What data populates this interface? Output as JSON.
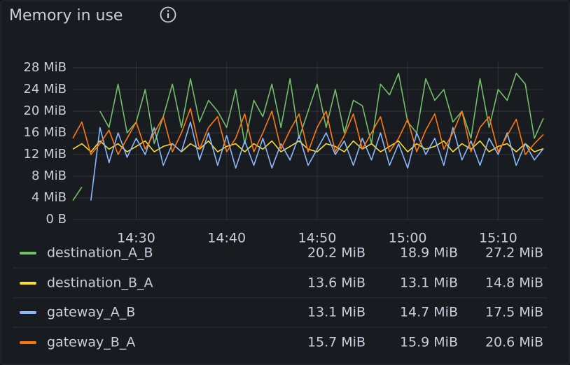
{
  "chart_data": {
    "type": "line",
    "title": "Memory in use",
    "x": [
      "14:23",
      "14:24",
      "14:25",
      "14:26",
      "14:27",
      "14:28",
      "14:29",
      "14:30",
      "14:31",
      "14:32",
      "14:33",
      "14:34",
      "14:35",
      "14:36",
      "14:37",
      "14:38",
      "14:39",
      "14:40",
      "14:41",
      "14:42",
      "14:43",
      "14:44",
      "14:45",
      "14:46",
      "14:47",
      "14:48",
      "14:49",
      "14:50",
      "14:51",
      "14:52",
      "14:53",
      "14:54",
      "14:55",
      "14:56",
      "14:57",
      "14:58",
      "14:59",
      "15:00",
      "15:01",
      "15:02",
      "15:03",
      "15:04",
      "15:05",
      "15:06",
      "15:07",
      "15:08",
      "15:09",
      "15:10",
      "15:11",
      "15:12",
      "15:13",
      "15:14",
      "15:15"
    ],
    "xlim": [
      "14:23",
      "15:15"
    ],
    "xticks": [
      "14:30",
      "14:40",
      "14:50",
      "15:00",
      "15:10"
    ],
    "ylim": [
      0,
      28
    ],
    "yticks": [
      {
        "value": 0,
        "label": "0 B"
      },
      {
        "value": 4,
        "label": "4 MiB"
      },
      {
        "value": 8,
        "label": "8 MiB"
      },
      {
        "value": 12,
        "label": "12 MiB"
      },
      {
        "value": 16,
        "label": "16 MiB"
      },
      {
        "value": 20,
        "label": "20 MiB"
      },
      {
        "value": 24,
        "label": "24 MiB"
      },
      {
        "value": 28,
        "label": "28 MiB"
      }
    ],
    "grid": true,
    "series": [
      {
        "name": "destination_A_B",
        "color": "#73bf69",
        "values": [
          3.5,
          6,
          null,
          20,
          17,
          25,
          16,
          18,
          24,
          14,
          19,
          25,
          17,
          26,
          18,
          22,
          20,
          17,
          24,
          14,
          22,
          19,
          25,
          17,
          26,
          15,
          20,
          25,
          17,
          24,
          16,
          22,
          21,
          14,
          25,
          23,
          27,
          18,
          16,
          26,
          22,
          24,
          18,
          20,
          15,
          26,
          17,
          24,
          22,
          27,
          25,
          15,
          18.7
        ],
        "stats": [
          "20.2 MiB",
          "18.9 MiB",
          "27.2 MiB"
        ]
      },
      {
        "name": "destination_B_A",
        "color": "#fade2a",
        "values": [
          13,
          14,
          12.5,
          14.5,
          13,
          14,
          12.5,
          13.5,
          14.5,
          12.5,
          13.5,
          14,
          12.5,
          14,
          13,
          14.5,
          12.5,
          13.5,
          14,
          12.5,
          14,
          13,
          14.5,
          12.5,
          13.5,
          14.5,
          13,
          12.5,
          14,
          13.5,
          12.5,
          14.5,
          13,
          14,
          12.5,
          13.5,
          14.5,
          12.5,
          14,
          13,
          13.5,
          14.5,
          12.5,
          14,
          13,
          14.5,
          12.5,
          13.5,
          14,
          12.5,
          14,
          12.5,
          13.1
        ],
        "stats": [
          "13.6 MiB",
          "13.1 MiB",
          "14.8 MiB"
        ]
      },
      {
        "name": "gateway_A_B",
        "color": "#8ab8ff",
        "values": [
          null,
          null,
          3.5,
          17,
          10.5,
          16,
          11.5,
          15,
          12,
          17,
          10,
          14,
          12.5,
          18,
          11,
          16,
          10,
          15.5,
          9.5,
          14.5,
          10,
          15,
          9.5,
          14,
          11,
          15.5,
          10,
          13,
          16,
          12,
          14.5,
          10,
          15,
          11,
          16,
          10,
          14,
          9.5,
          16,
          12,
          15,
          10,
          17,
          11,
          14.5,
          10,
          15,
          12,
          16,
          10,
          14,
          11,
          13.1
        ],
        "stats": [
          "13.1 MiB",
          "14.7 MiB",
          "17.5 MiB"
        ]
      },
      {
        "name": "gateway_B_A",
        "color": "#ff780a",
        "values": [
          15,
          18,
          12,
          14,
          16.5,
          12,
          15,
          18,
          13,
          16,
          19,
          12.5,
          16,
          20.5,
          13,
          17,
          19,
          12.5,
          15,
          19.5,
          12.5,
          16,
          20,
          13,
          16.5,
          19.5,
          12.5,
          17,
          20,
          12.5,
          15.5,
          19.5,
          13,
          16,
          19,
          12.5,
          15,
          18.5,
          12.5,
          16.5,
          19.5,
          13,
          16,
          20,
          12.5,
          17,
          19,
          12.5,
          15.5,
          18.5,
          12,
          14,
          15.7
        ],
        "stats": [
          "15.7 MiB",
          "15.9 MiB",
          "20.6 MiB"
        ]
      }
    ]
  }
}
